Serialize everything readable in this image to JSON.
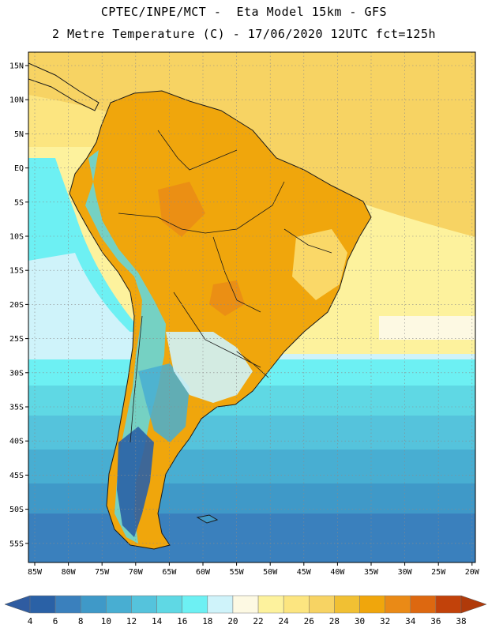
{
  "header": {
    "line1": "CPTEC/INPE/MCT -  Eta Model 15km - GFS",
    "line2": "2 Metre Temperature (C) - 17/06/2020 12UTC fct=125h"
  },
  "axes": {
    "lat_labels": [
      "15N",
      "10N",
      "5N",
      "EQ",
      "5S",
      "10S",
      "15S",
      "20S",
      "25S",
      "30S",
      "35S",
      "40S",
      "45S",
      "50S",
      "55S"
    ],
    "lon_labels": [
      "85W",
      "80W",
      "75W",
      "70W",
      "65W",
      "60W",
      "55W",
      "50W",
      "45W",
      "40W",
      "35W",
      "30W",
      "25W",
      "20W"
    ]
  },
  "legend": {
    "labels": [
      "4",
      "6",
      "8",
      "10",
      "12",
      "14",
      "16",
      "18",
      "20",
      "22",
      "24",
      "26",
      "28",
      "30",
      "32",
      "34",
      "36",
      "38"
    ],
    "colors": [
      "#2a61a6",
      "#3a80bd",
      "#3f99c8",
      "#48aed2",
      "#55c3dc",
      "#5fd8e4",
      "#6df0f3",
      "#cff3fa",
      "#fdf9e3",
      "#fdf29d",
      "#fce580",
      "#f7d363",
      "#f1c033",
      "#f0a60c",
      "#ea8a16",
      "#dd6810",
      "#c2420a"
    ],
    "left_arrow_color": "#2f5ca1",
    "right_arrow_color": "#b03a0a"
  },
  "map_colors": {
    "frame": "#000000",
    "grid": "#8a8a8a",
    "boundary": "#1a1a1a"
  }
}
